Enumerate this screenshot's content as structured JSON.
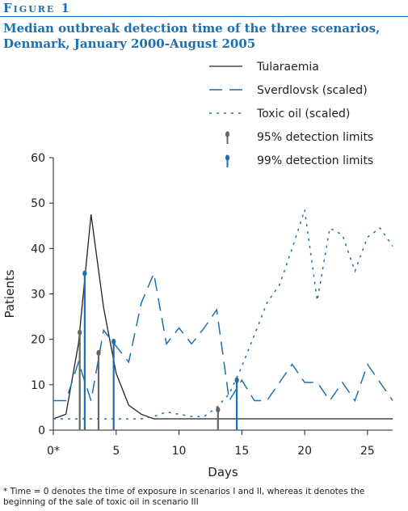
{
  "figure_label": "Figure 1",
  "title": "Median outbreak detection time of the three scenarios, Denmark, January 2000-August 2005",
  "footnote": "* Time = 0 denotes the time of exposure in scenarios I and II, whereas it denotes the beginning of the sale of toxic oil in scenario III",
  "colors": {
    "black": "#222222",
    "blue": "#1f6fb0",
    "grey": "#666666"
  },
  "chart_data": {
    "type": "line",
    "xlabel": "Days",
    "ylabel": "Patients",
    "xlim": [
      0,
      27
    ],
    "ylim": [
      0,
      60
    ],
    "xticks": [
      0,
      5,
      10,
      15,
      20,
      25
    ],
    "xtick_labels": [
      "0*",
      "5",
      "10",
      "15",
      "20",
      "25"
    ],
    "yticks": [
      0,
      10,
      20,
      30,
      40,
      50,
      60
    ],
    "ytick_labels": [
      "0",
      "10",
      "20",
      "30",
      "40",
      "50",
      "60"
    ],
    "series": [
      {
        "name": "Tularaemia",
        "style": "solid",
        "color": "#222222",
        "x": [
          0,
          1,
          2,
          3,
          4,
          5,
          6,
          7,
          8,
          27
        ],
        "y": [
          2.5,
          3.5,
          19,
          47.5,
          27,
          12.5,
          5.5,
          3.5,
          2.5,
          2.5
        ]
      },
      {
        "name": "Sverdlovsk (scaled)",
        "style": "dashed",
        "color": "#1f6fb0",
        "x": [
          0,
          1,
          2,
          3,
          4,
          5,
          6,
          7,
          8,
          9,
          10,
          11,
          12,
          13,
          14,
          15,
          16,
          17,
          18,
          19,
          20,
          21,
          22,
          23,
          24,
          25,
          26,
          27
        ],
        "y": [
          6.5,
          6.5,
          15,
          6.5,
          22,
          18.5,
          15,
          28,
          34.5,
          19,
          22.5,
          19,
          22.5,
          26.5,
          6.5,
          11,
          6.5,
          6.5,
          10.5,
          14.5,
          10.5,
          10.5,
          6.5,
          10.5,
          6.5,
          14.5,
          10.5,
          6.5
        ]
      },
      {
        "name": "Toxic oil  (scaled)",
        "style": "dotted",
        "color": "#1f6fb0",
        "x": [
          0,
          1,
          2,
          3,
          4,
          5,
          6,
          7,
          8,
          9,
          10,
          11,
          12,
          13,
          14,
          15,
          16,
          17,
          18,
          19,
          20,
          21,
          22,
          23,
          24,
          25,
          26,
          27
        ],
        "y": [
          2.5,
          2.5,
          2.5,
          2.5,
          2.5,
          2.5,
          2.5,
          2.5,
          3,
          4,
          3.5,
          3,
          3,
          5,
          8,
          14,
          21,
          28,
          32,
          40,
          48.5,
          28.5,
          44.5,
          43,
          35,
          42.5,
          44.5,
          40.5
        ]
      }
    ],
    "detection_limits": [
      {
        "name": "95% detection limits",
        "color": "#666666",
        "points": [
          {
            "x": 2.1,
            "y": 21.5
          },
          {
            "x": 3.6,
            "y": 17
          },
          {
            "x": 13.1,
            "y": 4.5
          }
        ]
      },
      {
        "name": "99% detection limits",
        "color": "#1f6fb0",
        "points": [
          {
            "x": 2.5,
            "y": 34.5
          },
          {
            "x": 4.8,
            "y": 19.5
          },
          {
            "x": 14.6,
            "y": 11
          }
        ]
      }
    ],
    "legend": {
      "position": "top-right",
      "entries": [
        "Tularaemia",
        "Sverdlovsk (scaled)",
        "Toxic oil  (scaled)",
        "95% detection limits",
        "99% detection limits"
      ]
    },
    "grid": false
  }
}
